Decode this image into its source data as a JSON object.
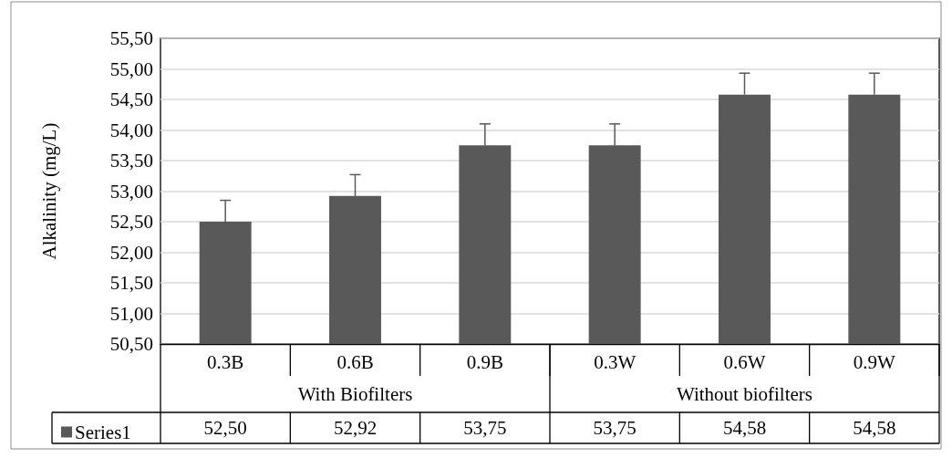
{
  "chart_data": {
    "type": "bar",
    "ylabel": "Alkalinity (mg/L)",
    "categories": [
      "0.3B",
      "0.6B",
      "0.9B",
      "0.3W",
      "0.6W",
      "0.9W"
    ],
    "series": [
      {
        "name": "Series1",
        "color": "#595959",
        "values": [
          52.5,
          52.92,
          53.75,
          53.75,
          54.58,
          54.58
        ],
        "errors": [
          0.35,
          0.35,
          0.35,
          0.35,
          0.35,
          0.35
        ],
        "value_labels": [
          "52,50",
          "52,92",
          "53,75",
          "53,75",
          "54,58",
          "54,58"
        ]
      }
    ],
    "annotations": [
      "With Biofilters",
      "Without biofilters"
    ],
    "ylim": [
      50.5,
      55.5
    ],
    "yticks": [
      {
        "value": 50.5,
        "label": "50,50"
      },
      {
        "value": 51,
        "label": "51,00"
      },
      {
        "value": 51.5,
        "label": "51,50"
      },
      {
        "value": 52,
        "label": "52,00"
      },
      {
        "value": 52.5,
        "label": "52,50"
      },
      {
        "value": 53,
        "label": "53,00"
      },
      {
        "value": 53.5,
        "label": "53,50"
      },
      {
        "value": 54,
        "label": "54,00"
      },
      {
        "value": 54.5,
        "label": "54,50"
      },
      {
        "value": 55,
        "label": "55,00"
      },
      {
        "value": 55.5,
        "label": "55,50"
      }
    ],
    "grid": "y",
    "legend": "bottom left"
  }
}
